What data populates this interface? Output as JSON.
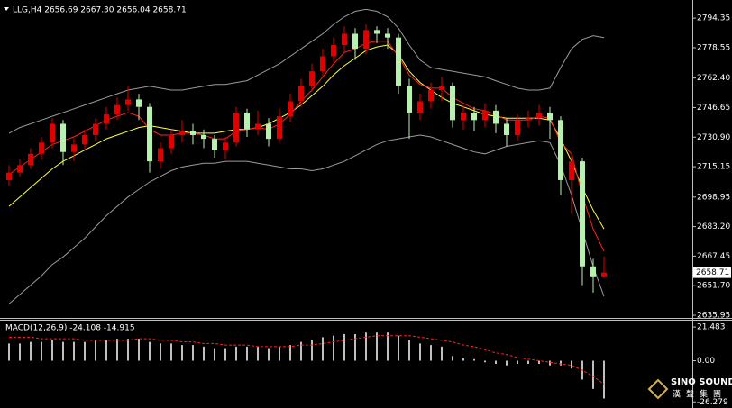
{
  "chart_data": [
    {
      "type": "candlestick",
      "title": "LLG,H4 2656.69 2667.30 2656.04 2658.71",
      "last_price": 2658.71,
      "up_color": "#e00000",
      "down_color": "#b8f0b0",
      "ylim": [
        2635,
        2804
      ],
      "yticks": [
        2794.35,
        2778.55,
        {
          "value": 2762.4,
          "label": "2762.40"
        },
        2746.65,
        {
          "value": 2730.9,
          "label": "2730.90"
        },
        2715.15,
        2698.95,
        {
          "value": 2683.2,
          "label": "2683.20"
        },
        2667.45,
        {
          "value": 2651.7,
          "label": "2651.70"
        },
        2635.95
      ],
      "open": [
        2708,
        2712,
        2716,
        2722,
        2728,
        2738,
        2723,
        2727,
        2732,
        2738,
        2743,
        2748,
        2751,
        2747,
        2718,
        2725,
        2732,
        2734,
        2732,
        2730,
        2724,
        2728,
        2744,
        2735,
        2738,
        2730,
        2742,
        2750,
        2758,
        2766,
        2774,
        2780,
        2786,
        2778,
        2788,
        2786,
        2784,
        2758,
        2744,
        2750,
        2756,
        2758,
        2740,
        2744,
        2740,
        2745,
        2738,
        2732,
        2740,
        2741,
        2744,
        2740,
        2708,
        2718,
        2662,
        2656.69
      ],
      "high": [
        2716,
        2719,
        2725,
        2731,
        2741,
        2740,
        2730,
        2735,
        2741,
        2747,
        2752,
        2758,
        2754,
        2749,
        2728,
        2735,
        2740,
        2738,
        2735,
        2732,
        2731,
        2747,
        2746,
        2745,
        2741,
        2746,
        2754,
        2762,
        2770,
        2778,
        2784,
        2790,
        2789,
        2791,
        2790,
        2789,
        2786,
        2762,
        2754,
        2760,
        2763,
        2760,
        2748,
        2747,
        2749,
        2748,
        2741,
        2743,
        2745,
        2748,
        2747,
        2742,
        2722,
        2720,
        2666,
        2667.3
      ],
      "low": [
        2705,
        2710,
        2714,
        2719,
        2725,
        2716,
        2718,
        2724,
        2729,
        2735,
        2740,
        2745,
        2740,
        2712,
        2714,
        2722,
        2728,
        2727,
        2725,
        2720,
        2719,
        2726,
        2731,
        2732,
        2726,
        2728,
        2739,
        2747,
        2755,
        2763,
        2771,
        2776,
        2772,
        2775,
        2781,
        2778,
        2754,
        2730,
        2740,
        2746,
        2750,
        2736,
        2735,
        2734,
        2736,
        2733,
        2726,
        2729,
        2736,
        2737,
        2730,
        2700,
        2690,
        2652,
        2648,
        2656.04
      ],
      "close": [
        2712,
        2716,
        2722,
        2728,
        2738,
        2723,
        2727,
        2732,
        2738,
        2743,
        2748,
        2751,
        2747,
        2718,
        2725,
        2732,
        2734,
        2732,
        2730,
        2724,
        2728,
        2744,
        2735,
        2738,
        2730,
        2742,
        2750,
        2758,
        2766,
        2774,
        2780,
        2786,
        2778,
        2788,
        2786,
        2784,
        2758,
        2744,
        2750,
        2756,
        2758,
        2740,
        2744,
        2740,
        2745,
        2738,
        2732,
        2740,
        2741,
        2744,
        2740,
        2708,
        2718,
        2662,
        2656.69,
        2658.71
      ],
      "lines": [
        {
          "color": "#9a9a9a",
          "values": [
            2733,
            2736,
            2738,
            2740,
            2742,
            2744,
            2746,
            2748,
            2750,
            2752,
            2754,
            2756,
            2757,
            2758,
            2757,
            2756,
            2756,
            2757,
            2758,
            2759,
            2759,
            2760,
            2761,
            2764,
            2767,
            2770,
            2774,
            2778,
            2782,
            2786,
            2791,
            2795,
            2798,
            2799,
            2798,
            2795,
            2789,
            2780,
            2772,
            2768,
            2767,
            2766,
            2765,
            2764,
            2763,
            2761,
            2759,
            2757,
            2756,
            2756,
            2757,
            2768,
            2778,
            2783,
            2785,
            2784
          ]
        },
        {
          "color": "#9a9a9a",
          "values": [
            2642,
            2647,
            2652,
            2657,
            2663,
            2667,
            2672,
            2677,
            2683,
            2689,
            2694,
            2699,
            2703,
            2707,
            2710,
            2713,
            2715,
            2716,
            2717,
            2717,
            2718,
            2718,
            2718,
            2717,
            2716,
            2715,
            2714,
            2714,
            2713,
            2714,
            2716,
            2718,
            2721,
            2724,
            2727,
            2729,
            2730,
            2731,
            2732,
            2731,
            2729,
            2727,
            2725,
            2723,
            2722,
            2724,
            2726,
            2727,
            2728,
            2729,
            2728,
            2716,
            2700,
            2681,
            2662,
            2646
          ]
        },
        {
          "color": "#ffff40",
          "values": [
            2694,
            2699,
            2704,
            2709,
            2714,
            2718,
            2721,
            2724,
            2727,
            2730,
            2732,
            2734,
            2736,
            2737,
            2736,
            2735,
            2734,
            2733,
            2733,
            2733,
            2734,
            2735,
            2735,
            2736,
            2738,
            2741,
            2744,
            2748,
            2753,
            2758,
            2764,
            2769,
            2773,
            2777,
            2779,
            2780,
            2775,
            2766,
            2760,
            2756,
            2752,
            2749,
            2747,
            2745,
            2743,
            2742,
            2741,
            2741,
            2741,
            2741,
            2740,
            2730,
            2718,
            2704,
            2692,
            2682
          ]
        },
        {
          "color": "#ff2020",
          "values": [
            2711,
            2715,
            2719,
            2723,
            2727,
            2729,
            2731,
            2734,
            2737,
            2740,
            2742,
            2744,
            2742,
            2735,
            2732,
            2732,
            2733,
            2733,
            2732,
            2730,
            2730,
            2734,
            2735,
            2736,
            2735,
            2738,
            2743,
            2750,
            2756,
            2763,
            2770,
            2776,
            2778,
            2781,
            2782,
            2782,
            2774,
            2764,
            2759,
            2757,
            2757,
            2752,
            2749,
            2746,
            2745,
            2743,
            2740,
            2740,
            2740,
            2742,
            2741,
            2728,
            2722,
            2700,
            2682,
            2670
          ]
        }
      ]
    },
    {
      "type": "bar",
      "title": "MACD(12,26,9) -24.108 -14.915",
      "color": "#ffffff",
      "ylim": [
        -29,
        25
      ],
      "yticks": [
        21.483,
        {
          "value": 0,
          "label": "0.00"
        },
        -26.279
      ],
      "values": [
        11,
        11,
        12,
        12,
        13,
        12,
        12,
        12,
        13,
        13,
        14,
        14,
        14,
        12,
        11,
        11,
        10,
        10,
        9,
        8,
        8,
        9,
        9,
        9,
        8,
        9,
        10,
        12,
        13,
        15,
        16,
        17,
        17,
        18,
        18,
        18,
        16,
        13,
        11,
        10,
        9,
        3,
        2,
        1,
        -1,
        -2,
        -3,
        -2,
        -2,
        -2,
        -3,
        -3,
        -5,
        -12,
        -18,
        -24.108
      ],
      "signal": {
        "color": "#ff2020",
        "values": [
          15,
          15,
          15,
          14,
          14,
          14,
          14,
          13,
          13,
          13,
          13,
          13,
          14,
          14,
          13,
          13,
          12,
          12,
          11,
          11,
          10,
          10,
          10,
          9,
          9,
          9,
          9,
          10,
          10,
          11,
          12,
          13,
          14,
          15,
          16,
          16,
          16,
          16,
          15,
          14,
          13,
          12,
          10,
          9,
          7,
          5,
          4,
          2,
          1,
          0,
          -1,
          -2,
          -3,
          -6,
          -10,
          -14.915
        ]
      }
    }
  ],
  "watermark": {
    "brand": "SINO SOUND",
    "name": "漢聲集團"
  }
}
